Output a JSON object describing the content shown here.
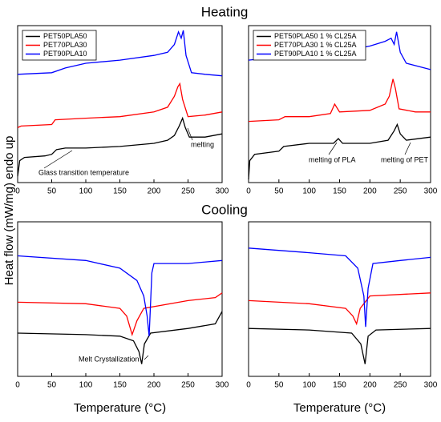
{
  "headings": [
    "Heating",
    "Cooling"
  ],
  "ylabel": "Heat flow (mW/mg) endo up",
  "chart_data": [
    {
      "type": "line",
      "xlim": [
        0,
        300
      ],
      "xticks": [
        0,
        50,
        100,
        150,
        200,
        250,
        300
      ],
      "ylim": [
        0,
        10
      ],
      "legend": "upper left",
      "annotations": [
        "Glass transition temperature",
        "melting"
      ],
      "series": [
        {
          "name": "PET50PLA50",
          "color": "#000000",
          "x": [
            0,
            3,
            10,
            40,
            50,
            57,
            70,
            100,
            150,
            200,
            220,
            230,
            237,
            242,
            246,
            252,
            275,
            300
          ],
          "values": [
            0.4,
            1.4,
            1.6,
            1.7,
            1.8,
            2.1,
            2.2,
            2.2,
            2.3,
            2.5,
            2.7,
            3.0,
            3.6,
            4.1,
            3.5,
            2.9,
            2.9,
            3.1
          ]
        },
        {
          "name": "PET70PLA30",
          "color": "#ff0000",
          "x": [
            0,
            5,
            50,
            55,
            100,
            150,
            200,
            220,
            230,
            235,
            238,
            242,
            250,
            275,
            300
          ],
          "values": [
            3.5,
            3.6,
            3.7,
            4.0,
            4.1,
            4.2,
            4.5,
            4.8,
            5.5,
            6.1,
            6.3,
            5.3,
            4.2,
            4.3,
            4.5
          ]
        },
        {
          "name": "PET90PLA10",
          "color": "#0000ff",
          "x": [
            0,
            50,
            70,
            100,
            150,
            200,
            220,
            230,
            236,
            240,
            243,
            247,
            255,
            275,
            300
          ],
          "values": [
            6.9,
            7.0,
            7.3,
            7.6,
            7.8,
            8.1,
            8.3,
            8.8,
            9.6,
            9.2,
            9.7,
            8.1,
            7.0,
            6.9,
            6.8
          ]
        }
      ]
    },
    {
      "type": "line",
      "xlim": [
        0,
        300
      ],
      "xticks": [
        0,
        50,
        100,
        150,
        200,
        250,
        300
      ],
      "ylim": [
        0,
        10
      ],
      "legend": "upper left",
      "annotations": [
        "melting of PLA",
        "melting of PET"
      ],
      "series": [
        {
          "name": "PET50PLA50 1 % CL25A",
          "color": "#000000",
          "x": [
            0,
            2,
            10,
            50,
            58,
            100,
            140,
            148,
            155,
            200,
            230,
            240,
            245,
            250,
            260,
            300
          ],
          "values": [
            0.2,
            1.4,
            1.8,
            2.0,
            2.3,
            2.5,
            2.5,
            2.8,
            2.5,
            2.5,
            2.7,
            3.3,
            3.7,
            3.1,
            2.7,
            2.9
          ]
        },
        {
          "name": "PET70PLA30 1 % CL25A",
          "color": "#ff0000",
          "x": [
            0,
            50,
            60,
            100,
            135,
            142,
            150,
            200,
            225,
            232,
            238,
            242,
            248,
            275,
            300
          ],
          "values": [
            3.9,
            4.0,
            4.2,
            4.2,
            4.4,
            5.0,
            4.5,
            4.6,
            5.0,
            5.5,
            6.6,
            6.0,
            4.7,
            4.5,
            4.5
          ]
        },
        {
          "name": "PET90PLA10 1 % CL25A",
          "color": "#0000ff",
          "x": [
            0,
            50,
            100,
            150,
            200,
            225,
            235,
            240,
            244,
            250,
            260,
            300
          ],
          "values": [
            7.8,
            8.0,
            8.2,
            8.3,
            8.7,
            9.0,
            9.2,
            8.8,
            9.6,
            8.3,
            7.6,
            7.2
          ]
        }
      ]
    },
    {
      "type": "line",
      "xlim": [
        0,
        300
      ],
      "xticks": [
        0,
        50,
        100,
        150,
        200,
        250,
        300
      ],
      "ylim": [
        0,
        10
      ],
      "xlabel": "Temperature (°C)",
      "annotations": [
        "Melt Crystallization"
      ],
      "series": [
        {
          "color": "#000000",
          "x": [
            0,
            100,
            150,
            170,
            178,
            182,
            186,
            195,
            250,
            290,
            300
          ],
          "values": [
            2.8,
            2.7,
            2.6,
            2.3,
            1.6,
            0.8,
            2.1,
            2.8,
            3.1,
            3.4,
            4.2
          ]
        },
        {
          "color": "#ff0000",
          "x": [
            0,
            100,
            150,
            160,
            168,
            175,
            185,
            250,
            290,
            300
          ],
          "values": [
            4.8,
            4.7,
            4.4,
            3.9,
            2.7,
            3.6,
            4.4,
            4.9,
            5.1,
            5.4
          ]
        },
        {
          "color": "#0000ff",
          "x": [
            0,
            100,
            150,
            175,
            185,
            190,
            193,
            197,
            200,
            250,
            300
          ],
          "values": [
            7.8,
            7.5,
            7.0,
            6.2,
            5.2,
            3.9,
            2.6,
            6.7,
            7.3,
            7.3,
            7.5
          ]
        }
      ]
    },
    {
      "type": "line",
      "xlim": [
        0,
        300
      ],
      "xticks": [
        0,
        50,
        100,
        150,
        200,
        250,
        300
      ],
      "ylim": [
        0,
        10
      ],
      "xlabel": "Temperature (°C)",
      "series": [
        {
          "color": "#000000",
          "x": [
            0,
            100,
            170,
            185,
            192,
            197,
            210,
            300
          ],
          "values": [
            3.1,
            3.0,
            2.8,
            2.1,
            0.8,
            2.6,
            3.0,
            3.1
          ]
        },
        {
          "color": "#ff0000",
          "x": [
            0,
            100,
            160,
            172,
            178,
            184,
            200,
            300
          ],
          "values": [
            4.9,
            4.7,
            4.4,
            3.9,
            3.4,
            4.4,
            5.2,
            5.4
          ]
        },
        {
          "color": "#0000ff",
          "x": [
            0,
            100,
            160,
            180,
            190,
            193,
            197,
            205,
            250,
            300
          ],
          "values": [
            8.3,
            8.0,
            7.8,
            7.0,
            5.2,
            3.2,
            5.7,
            7.3,
            7.5,
            7.7
          ]
        }
      ]
    }
  ]
}
